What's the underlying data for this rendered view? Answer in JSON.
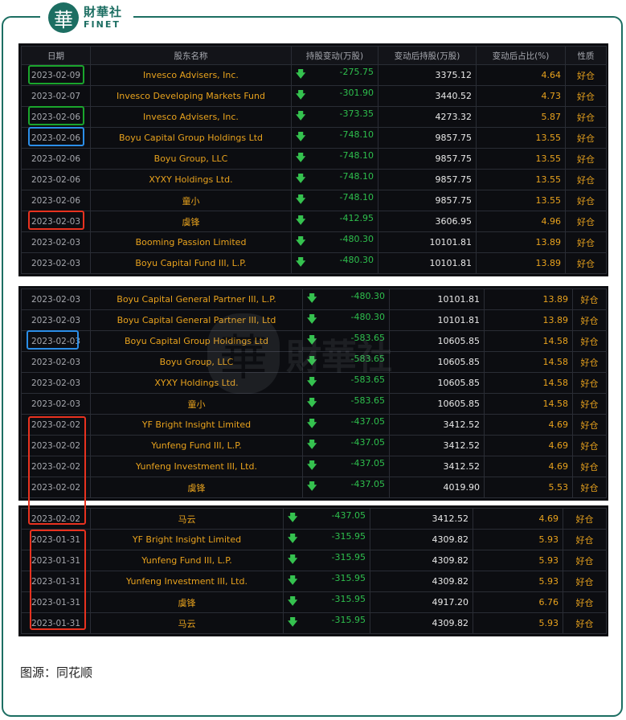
{
  "logo": {
    "mark": "華",
    "cn": "財華社",
    "en": "FINET"
  },
  "headers": {
    "date": "日期",
    "holder": "股东名称",
    "change": "持股变动(万股)",
    "after": "变动后持股(万股)",
    "pct": "变动后占比(%)",
    "nature": "性质"
  },
  "panel1": [
    {
      "date": "2023-02-09",
      "name": "Invesco Advisers, Inc.",
      "change": "-275.75",
      "after": "3375.12",
      "pct": "4.64",
      "nature": "好仓"
    },
    {
      "date": "2023-02-07",
      "name": "Invesco Developing Markets Fund",
      "change": "-301.90",
      "after": "3440.52",
      "pct": "4.73",
      "nature": "好仓"
    },
    {
      "date": "2023-02-06",
      "name": "Invesco Advisers, Inc.",
      "change": "-373.35",
      "after": "4273.32",
      "pct": "5.87",
      "nature": "好仓"
    },
    {
      "date": "2023-02-06",
      "name": "Boyu Capital Group Holdings Ltd",
      "change": "-748.10",
      "after": "9857.75",
      "pct": "13.55",
      "nature": "好仓"
    },
    {
      "date": "2023-02-06",
      "name": "Boyu Group, LLC",
      "change": "-748.10",
      "after": "9857.75",
      "pct": "13.55",
      "nature": "好仓"
    },
    {
      "date": "2023-02-06",
      "name": "XYXY Holdings Ltd.",
      "change": "-748.10",
      "after": "9857.75",
      "pct": "13.55",
      "nature": "好仓"
    },
    {
      "date": "2023-02-06",
      "name": "童小",
      "change": "-748.10",
      "after": "9857.75",
      "pct": "13.55",
      "nature": "好仓"
    },
    {
      "date": "2023-02-03",
      "name": "虞锋",
      "change": "-412.95",
      "after": "3606.95",
      "pct": "4.96",
      "nature": "好仓"
    },
    {
      "date": "2023-02-03",
      "name": "Booming Passion Limited",
      "change": "-480.30",
      "after": "10101.81",
      "pct": "13.89",
      "nature": "好仓"
    },
    {
      "date": "2023-02-03",
      "name": "Boyu Capital Fund III, L.P.",
      "change": "-480.30",
      "after": "10101.81",
      "pct": "13.89",
      "nature": "好仓"
    }
  ],
  "panel2": [
    {
      "date": "2023-02-03",
      "name": "Boyu Capital General Partner III, L.P.",
      "change": "-480.30",
      "after": "10101.81",
      "pct": "13.89",
      "nature": "好仓"
    },
    {
      "date": "2023-02-03",
      "name": "Boyu Capital General Partner III, Ltd",
      "change": "-480.30",
      "after": "10101.81",
      "pct": "13.89",
      "nature": "好仓"
    },
    {
      "date": "2023-02-03",
      "name": "Boyu Capital Group Holdings Ltd",
      "change": "-583.65",
      "after": "10605.85",
      "pct": "14.58",
      "nature": "好仓"
    },
    {
      "date": "2023-02-03",
      "name": "Boyu Group, LLC",
      "change": "-583.65",
      "after": "10605.85",
      "pct": "14.58",
      "nature": "好仓"
    },
    {
      "date": "2023-02-03",
      "name": "XYXY Holdings Ltd.",
      "change": "-583.65",
      "after": "10605.85",
      "pct": "14.58",
      "nature": "好仓"
    },
    {
      "date": "2023-02-03",
      "name": "童小",
      "change": "-583.65",
      "after": "10605.85",
      "pct": "14.58",
      "nature": "好仓"
    },
    {
      "date": "2023-02-02",
      "name": "YF Bright Insight Limited",
      "change": "-437.05",
      "after": "3412.52",
      "pct": "4.69",
      "nature": "好仓"
    },
    {
      "date": "2023-02-02",
      "name": "Yunfeng Fund III, L.P.",
      "change": "-437.05",
      "after": "3412.52",
      "pct": "4.69",
      "nature": "好仓"
    },
    {
      "date": "2023-02-02",
      "name": "Yunfeng Investment III, Ltd.",
      "change": "-437.05",
      "after": "3412.52",
      "pct": "4.69",
      "nature": "好仓"
    },
    {
      "date": "2023-02-02",
      "name": "虞锋",
      "change": "-437.05",
      "after": "4019.90",
      "pct": "5.53",
      "nature": "好仓"
    }
  ],
  "panel3": [
    {
      "date": "2023-02-02",
      "name": "马云",
      "change": "-437.05",
      "after": "3412.52",
      "pct": "4.69",
      "nature": "好仓"
    },
    {
      "date": "2023-01-31",
      "name": "YF Bright Insight Limited",
      "change": "-315.95",
      "after": "4309.82",
      "pct": "5.93",
      "nature": "好仓"
    },
    {
      "date": "2023-01-31",
      "name": "Yunfeng Fund III, L.P.",
      "change": "-315.95",
      "after": "4309.82",
      "pct": "5.93",
      "nature": "好仓"
    },
    {
      "date": "2023-01-31",
      "name": "Yunfeng Investment III, Ltd.",
      "change": "-315.95",
      "after": "4309.82",
      "pct": "5.93",
      "nature": "好仓"
    },
    {
      "date": "2023-01-31",
      "name": "虞锋",
      "change": "-315.95",
      "after": "4917.20",
      "pct": "6.76",
      "nature": "好仓"
    },
    {
      "date": "2023-01-31",
      "name": "马云",
      "change": "-315.95",
      "after": "4309.82",
      "pct": "5.93",
      "nature": "好仓"
    }
  ],
  "arrow_glyph": "🡇",
  "source": "图源：同花顺",
  "colors": {
    "frame": "#1c6e62",
    "panel_bg": "#0c0d11",
    "name": "#e8a21d",
    "change": "#2ebf4d",
    "box_green": "#1aa52c",
    "box_blue": "#2b8ee8",
    "box_red": "#e8321f"
  }
}
